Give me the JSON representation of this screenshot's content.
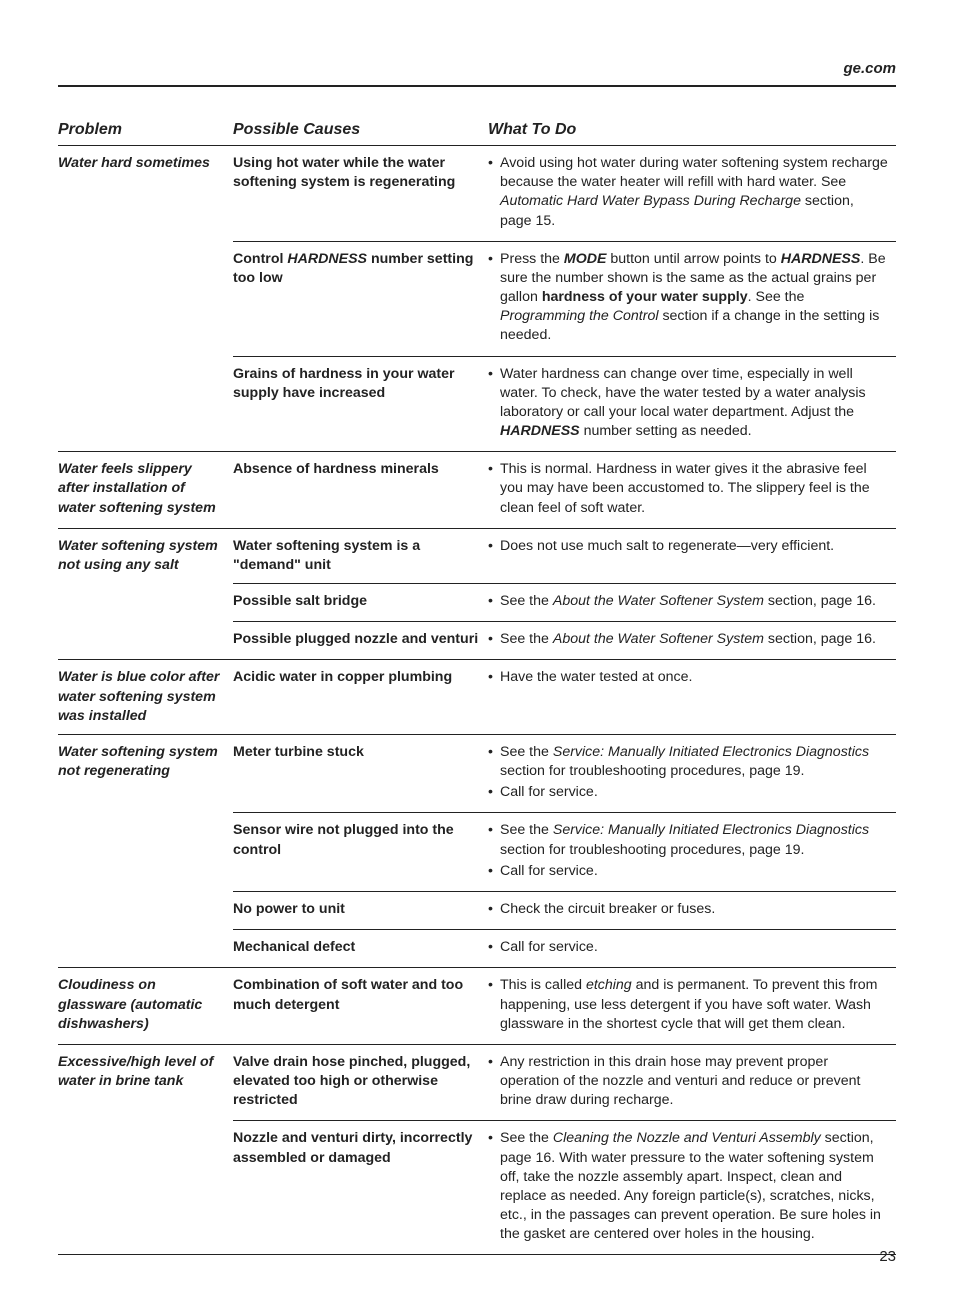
{
  "header": {
    "site_link": "ge.com"
  },
  "columns": {
    "problem": "Problem",
    "causes": "Possible Causes",
    "what_to_do": "What To Do"
  },
  "rows": [
    {
      "problem": "Water hard sometimes",
      "cause_html": "Using hot water while the water softening system is regenerating",
      "actions": [
        "Avoid using hot water during water softening system recharge because the water heater will refill with hard water. See <em class='i'>Automatic Hard Water Bypass During Recharge</em> section, page 15."
      ]
    },
    {
      "problem": "",
      "cause_html": "Control <em>HARDNESS</em> number setting too low",
      "actions": [
        "Press the <strong class='bi'>MODE</strong> button until arrow points to <strong class='bi'>HARDNESS</strong>. Be sure the number shown is the same as the actual grains per gallon <strong class='b'>hardness of your water supply</strong>. See the <em class='i'>Programming the Control</em> section if a change in the setting is needed."
      ]
    },
    {
      "problem": "",
      "cause_html": "Grains of hardness in your water supply have increased",
      "actions": [
        "Water hardness can change over time, especially in well water. To check, have the water tested by a water analysis laboratory or call your local water department. Adjust the <strong class='bi'>HARDNESS</strong> number setting as needed."
      ]
    },
    {
      "problem": "Water feels slippery after installation of water softening system",
      "cause_html": "Absence of hardness minerals",
      "actions": [
        "This is normal. Hardness in water gives it the abrasive feel you may have been accustomed to. The slippery feel is the clean feel of soft water."
      ]
    },
    {
      "problem": "Water softening system not using any salt",
      "cause_html": "Water softening system is a \"demand\" unit",
      "actions": [
        "Does not use much salt to regenerate—very efficient."
      ]
    },
    {
      "problem": "",
      "cause_html": "Possible salt bridge",
      "actions": [
        "See the <em class='i'>About the Water Softener System</em> section, page 16."
      ]
    },
    {
      "problem": "",
      "cause_html": "Possible plugged nozzle and venturi",
      "actions": [
        "See the <em class='i'>About the Water Softener System</em> section, page 16."
      ]
    },
    {
      "problem": "Water is blue color after water softening system was installed",
      "cause_html": "Acidic water in copper plumbing",
      "actions": [
        "Have the water tested at once."
      ]
    },
    {
      "problem": "Water softening system not regenerating",
      "cause_html": "Meter turbine stuck",
      "actions": [
        "See the <em class='i'>Service: Manually Initiated Electronics Diagnostics</em> section for troubleshooting procedures, page 19.",
        "Call for service."
      ]
    },
    {
      "problem": "",
      "cause_html": "Sensor wire not plugged into the control",
      "actions": [
        "See the <em class='i'>Service: Manually Initiated Electronics Diagnostics</em> section for troubleshooting procedures, page 19.",
        "Call for service."
      ]
    },
    {
      "problem": "",
      "cause_html": "No power to unit",
      "actions": [
        "Check the circuit breaker or fuses."
      ]
    },
    {
      "problem": "",
      "cause_html": "Mechanical defect",
      "actions": [
        "Call for service."
      ]
    },
    {
      "problem": "Cloudiness on glassware (automatic dishwashers)",
      "cause_html": "Combination of soft water and too much detergent",
      "actions": [
        "This is called <em class='i'>etching</em> and is permanent. To prevent this from happening, use less detergent if you have soft water. Wash glassware in the shortest cycle that will get them clean."
      ]
    },
    {
      "problem": "Excessive/high level of water in brine tank",
      "cause_html": "Valve drain hose pinched, plugged, elevated too high or otherwise restricted",
      "actions": [
        "Any restriction in this drain hose may prevent proper operation of the nozzle and venturi and reduce or prevent brine draw during recharge."
      ]
    },
    {
      "problem": "",
      "cause_html": "Nozzle and venturi dirty, incorrectly assembled or damaged",
      "actions": [
        "See the <em class='i'>Cleaning the Nozzle and Venturi Assembly</em> section, page 16. With water pressure to the water softening system off, take the nozzle assembly apart. Inspect, clean and replace as needed. Any foreign particle(s), scratches, nicks, etc., in the passages can prevent operation. Be sure holes in the gasket are centered over holes in the housing."
      ]
    }
  ],
  "footer": {
    "page_number": "23"
  }
}
